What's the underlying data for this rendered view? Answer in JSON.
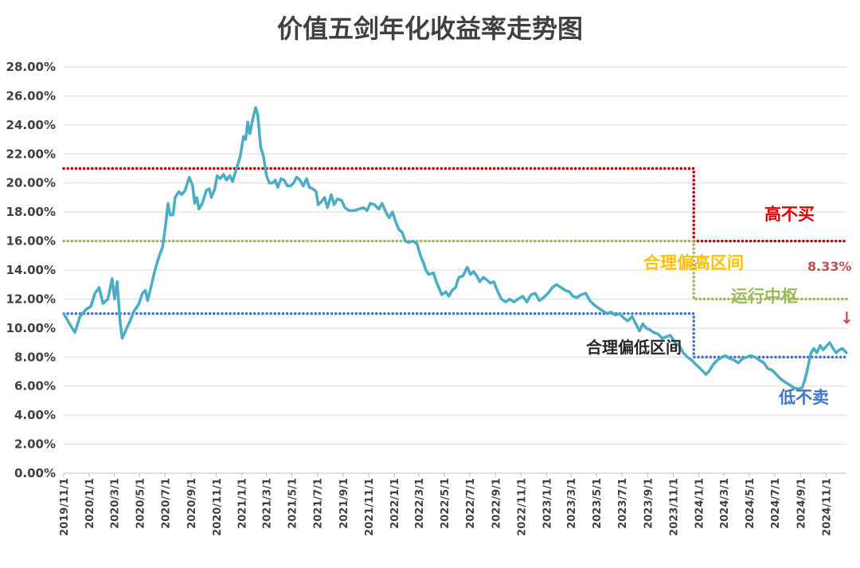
{
  "chart_data": {
    "type": "line",
    "title": "价值五剑年化收益率走势图",
    "xlabel": "",
    "ylabel": "",
    "ylim": [
      0,
      28
    ],
    "y_ticks": [
      "0.00%",
      "2.00%",
      "4.00%",
      "6.00%",
      "8.00%",
      "10.00%",
      "12.00%",
      "14.00%",
      "16.00%",
      "18.00%",
      "20.00%",
      "22.00%",
      "24.00%",
      "26.00%",
      "28.00%"
    ],
    "x_ticks": [
      "2019/11/1",
      "2020/1/1",
      "2020/3/1",
      "2020/5/1",
      "2020/7/1",
      "2020/9/1",
      "2020/11/1",
      "2021/1/1",
      "2021/3/1",
      "2021/5/1",
      "2021/7/1",
      "2021/9/1",
      "2021/11/1",
      "2022/1/1",
      "2022/3/1",
      "2022/5/1",
      "2022/7/1",
      "2022/9/1",
      "2022/11/1",
      "2023/1/1",
      "2023/3/1",
      "2023/5/1",
      "2023/7/1",
      "2023/9/1",
      "2023/11/1",
      "2024/1/1",
      "2024/3/1",
      "2024/5/1",
      "2024/7/1",
      "2024/9/1",
      "2024/11/1"
    ],
    "x_range": [
      "2019/11/1",
      "2024/12/20"
    ],
    "grid": true,
    "series": [
      {
        "kind": "annualized-return",
        "color": "#4bacc6",
        "points": [
          [
            "2019/11/1",
            11.0
          ],
          [
            "2019/11/15",
            10.3
          ],
          [
            "2019/11/28",
            9.7
          ],
          [
            "2019/12/10",
            10.8
          ],
          [
            "2019/12/25",
            11.3
          ],
          [
            "2020/1/5",
            11.5
          ],
          [
            "2020/1/15",
            12.4
          ],
          [
            "2020/1/25",
            12.8
          ],
          [
            "2020/2/3",
            11.7
          ],
          [
            "2020/2/15",
            12.0
          ],
          [
            "2020/2/25",
            13.4
          ],
          [
            "2020/3/2",
            12.0
          ],
          [
            "2020/3/8",
            13.2
          ],
          [
            "2020/3/15",
            10.5
          ],
          [
            "2020/3/20",
            9.3
          ],
          [
            "2020/3/28",
            9.8
          ],
          [
            "2020/4/8",
            10.5
          ],
          [
            "2020/4/18",
            11.2
          ],
          [
            "2020/4/28",
            11.6
          ],
          [
            "2020/5/8",
            12.4
          ],
          [
            "2020/5/15",
            12.6
          ],
          [
            "2020/5/20",
            11.9
          ],
          [
            "2020/5/28",
            12.8
          ],
          [
            "2020/6/5",
            13.8
          ],
          [
            "2020/6/15",
            14.8
          ],
          [
            "2020/6/25",
            15.6
          ],
          [
            "2020/7/1",
            16.8
          ],
          [
            "2020/7/8",
            18.6
          ],
          [
            "2020/7/13",
            17.8
          ],
          [
            "2020/7/20",
            17.8
          ],
          [
            "2020/7/25",
            19.0
          ],
          [
            "2020/8/3",
            19.4
          ],
          [
            "2020/8/10",
            19.2
          ],
          [
            "2020/8/18",
            19.5
          ],
          [
            "2020/8/28",
            20.4
          ],
          [
            "2020/9/5",
            19.8
          ],
          [
            "2020/9/10",
            18.6
          ],
          [
            "2020/9/15",
            19.0
          ],
          [
            "2020/9/20",
            18.2
          ],
          [
            "2020/9/28",
            18.6
          ],
          [
            "2020/10/8",
            19.5
          ],
          [
            "2020/10/15",
            19.6
          ],
          [
            "2020/10/20",
            19.0
          ],
          [
            "2020/10/28",
            19.6
          ],
          [
            "2020/11/3",
            20.5
          ],
          [
            "2020/11/10",
            20.3
          ],
          [
            "2020/11/18",
            20.6
          ],
          [
            "2020/11/25",
            20.2
          ],
          [
            "2020/12/3",
            20.5
          ],
          [
            "2020/12/10",
            20.1
          ],
          [
            "2020/12/18",
            20.9
          ],
          [
            "2020/12/28",
            21.8
          ],
          [
            "2021/1/5",
            23.2
          ],
          [
            "2021/1/10",
            23.0
          ],
          [
            "2021/1/15",
            24.2
          ],
          [
            "2021/1/20",
            23.4
          ],
          [
            "2021/1/28",
            24.5
          ],
          [
            "2021/2/3",
            25.2
          ],
          [
            "2021/2/8",
            24.7
          ],
          [
            "2021/2/15",
            22.5
          ],
          [
            "2021/2/22",
            21.8
          ],
          [
            "2021/3/1",
            20.5
          ],
          [
            "2021/3/8",
            20.0
          ],
          [
            "2021/3/15",
            20.0
          ],
          [
            "2021/3/22",
            20.2
          ],
          [
            "2021/3/28",
            19.7
          ],
          [
            "2021/4/5",
            20.3
          ],
          [
            "2021/4/12",
            20.2
          ],
          [
            "2021/4/20",
            19.8
          ],
          [
            "2021/4/28",
            19.8
          ],
          [
            "2021/5/5",
            20.0
          ],
          [
            "2021/5/12",
            20.4
          ],
          [
            "2021/5/20",
            20.2
          ],
          [
            "2021/5/28",
            19.8
          ],
          [
            "2021/6/5",
            20.3
          ],
          [
            "2021/6/12",
            19.7
          ],
          [
            "2021/6/20",
            19.6
          ],
          [
            "2021/6/28",
            19.4
          ],
          [
            "2021/7/3",
            18.5
          ],
          [
            "2021/7/10",
            18.7
          ],
          [
            "2021/7/18",
            19.0
          ],
          [
            "2021/7/25",
            18.3
          ],
          [
            "2021/8/3",
            19.2
          ],
          [
            "2021/8/10",
            18.5
          ],
          [
            "2021/8/18",
            18.9
          ],
          [
            "2021/8/28",
            18.8
          ],
          [
            "2021/9/5",
            18.3
          ],
          [
            "2021/9/15",
            18.1
          ],
          [
            "2021/9/28",
            18.1
          ],
          [
            "2021/10/8",
            18.2
          ],
          [
            "2021/10/20",
            18.3
          ],
          [
            "2021/10/28",
            18.1
          ],
          [
            "2021/11/5",
            18.6
          ],
          [
            "2021/11/15",
            18.5
          ],
          [
            "2021/11/25",
            18.2
          ],
          [
            "2021/12/3",
            18.6
          ],
          [
            "2021/12/12",
            18.0
          ],
          [
            "2021/12/20",
            17.6
          ],
          [
            "2021/12/28",
            18.0
          ],
          [
            "2022/1/5",
            17.3
          ],
          [
            "2022/1/12",
            16.8
          ],
          [
            "2022/1/20",
            16.6
          ],
          [
            "2022/1/28",
            16.0
          ],
          [
            "2022/2/5",
            15.9
          ],
          [
            "2022/2/15",
            16.0
          ],
          [
            "2022/2/25",
            15.8
          ],
          [
            "2022/3/5",
            15.0
          ],
          [
            "2022/3/12",
            14.5
          ],
          [
            "2022/3/18",
            14.0
          ],
          [
            "2022/3/25",
            13.7
          ],
          [
            "2022/4/5",
            13.8
          ],
          [
            "2022/4/12",
            13.2
          ],
          [
            "2022/4/18",
            12.8
          ],
          [
            "2022/4/25",
            12.3
          ],
          [
            "2022/5/5",
            12.5
          ],
          [
            "2022/5/12",
            12.2
          ],
          [
            "2022/5/20",
            12.6
          ],
          [
            "2022/5/28",
            12.8
          ],
          [
            "2022/6/5",
            13.5
          ],
          [
            "2022/6/15",
            13.6
          ],
          [
            "2022/6/25",
            14.2
          ],
          [
            "2022/7/3",
            13.7
          ],
          [
            "2022/7/10",
            13.9
          ],
          [
            "2022/7/18",
            13.6
          ],
          [
            "2022/7/25",
            13.2
          ],
          [
            "2022/8/3",
            13.5
          ],
          [
            "2022/8/12",
            13.3
          ],
          [
            "2022/8/20",
            13.1
          ],
          [
            "2022/8/28",
            13.2
          ],
          [
            "2022/9/5",
            12.6
          ],
          [
            "2022/9/15",
            12.0
          ],
          [
            "2022/9/25",
            11.8
          ],
          [
            "2022/10/5",
            12.0
          ],
          [
            "2022/10/15",
            11.8
          ],
          [
            "2022/10/25",
            12.0
          ],
          [
            "2022/11/5",
            12.2
          ],
          [
            "2022/11/15",
            11.8
          ],
          [
            "2022/11/25",
            12.3
          ],
          [
            "2022/12/5",
            12.4
          ],
          [
            "2022/12/15",
            11.9
          ],
          [
            "2022/12/25",
            12.1
          ],
          [
            "2023/1/5",
            12.4
          ],
          [
            "2023/1/15",
            12.8
          ],
          [
            "2023/1/25",
            13.0
          ],
          [
            "2023/2/5",
            12.8
          ],
          [
            "2023/2/15",
            12.6
          ],
          [
            "2023/2/25",
            12.5
          ],
          [
            "2023/3/5",
            12.2
          ],
          [
            "2023/3/15",
            12.1
          ],
          [
            "2023/3/25",
            12.3
          ],
          [
            "2023/4/5",
            12.4
          ],
          [
            "2023/4/15",
            11.9
          ],
          [
            "2023/4/25",
            11.6
          ],
          [
            "2023/5/5",
            11.4
          ],
          [
            "2023/5/15",
            11.2
          ],
          [
            "2023/5/25",
            11.0
          ],
          [
            "2023/6/5",
            11.1
          ],
          [
            "2023/6/15",
            10.9
          ],
          [
            "2023/6/25",
            11.0
          ],
          [
            "2023/7/5",
            10.7
          ],
          [
            "2023/7/15",
            10.5
          ],
          [
            "2023/7/25",
            10.8
          ],
          [
            "2023/8/5",
            10.2
          ],
          [
            "2023/8/12",
            9.8
          ],
          [
            "2023/8/20",
            10.3
          ],
          [
            "2023/8/28",
            10.0
          ],
          [
            "2023/9/5",
            9.9
          ],
          [
            "2023/9/15",
            9.7
          ],
          [
            "2023/9/25",
            9.6
          ],
          [
            "2023/10/5",
            9.3
          ],
          [
            "2023/10/15",
            9.4
          ],
          [
            "2023/10/25",
            9.5
          ],
          [
            "2023/11/5",
            9.0
          ],
          [
            "2023/11/15",
            8.8
          ],
          [
            "2023/11/25",
            8.3
          ],
          [
            "2023/12/5",
            8.0
          ],
          [
            "2023/12/15",
            7.8
          ],
          [
            "2023/12/25",
            7.5
          ],
          [
            "2024/1/5",
            7.2
          ],
          [
            "2024/1/12",
            7.0
          ],
          [
            "2024/1/18",
            6.8
          ],
          [
            "2024/1/25",
            7.0
          ],
          [
            "2024/2/5",
            7.5
          ],
          [
            "2024/2/15",
            7.8
          ],
          [
            "2024/2/25",
            8.0
          ],
          [
            "2024/3/5",
            8.1
          ],
          [
            "2024/3/15",
            7.9
          ],
          [
            "2024/3/25",
            7.8
          ],
          [
            "2024/4/5",
            7.6
          ],
          [
            "2024/4/15",
            7.9
          ],
          [
            "2024/4/25",
            8.0
          ],
          [
            "2024/5/5",
            8.1
          ],
          [
            "2024/5/15",
            8.0
          ],
          [
            "2024/5/25",
            7.8
          ],
          [
            "2024/6/5",
            7.6
          ],
          [
            "2024/6/15",
            7.2
          ],
          [
            "2024/6/25",
            7.1
          ],
          [
            "2024/7/5",
            6.8
          ],
          [
            "2024/7/15",
            6.5
          ],
          [
            "2024/7/25",
            6.3
          ],
          [
            "2024/8/5",
            6.1
          ],
          [
            "2024/8/15",
            5.9
          ],
          [
            "2024/8/25",
            5.8
          ],
          [
            "2024/9/5",
            5.9
          ],
          [
            "2024/9/12",
            6.5
          ],
          [
            "2024/9/20",
            7.5
          ],
          [
            "2024/9/26",
            8.3
          ],
          [
            "2024/10/3",
            8.6
          ],
          [
            "2024/10/10",
            8.3
          ],
          [
            "2024/10/18",
            8.8
          ],
          [
            "2024/10/25",
            8.5
          ],
          [
            "2024/11/3",
            8.8
          ],
          [
            "2024/11/10",
            9.0
          ],
          [
            "2024/11/18",
            8.6
          ],
          [
            "2024/11/25",
            8.3
          ],
          [
            "2024/12/3",
            8.5
          ],
          [
            "2024/12/10",
            8.6
          ],
          [
            "2024/12/20",
            8.3
          ]
        ]
      }
    ],
    "bands": [
      {
        "kind": "upper",
        "color": "#c00000",
        "segments": [
          [
            "2019/11/1",
            "2023/12/20",
            21.0
          ],
          [
            "2023/12/20",
            "2024/12/20",
            16.0
          ]
        ]
      },
      {
        "kind": "middle",
        "color": "#9bbb59",
        "segments": [
          [
            "2019/11/1",
            "2023/12/20",
            16.0
          ],
          [
            "2023/12/20",
            "2024/12/20",
            12.0
          ]
        ]
      },
      {
        "kind": "lower",
        "color": "#4472c4",
        "segments": [
          [
            "2019/11/1",
            "2023/12/20",
            11.0
          ],
          [
            "2023/12/20",
            "2024/12/20",
            8.0
          ]
        ]
      }
    ],
    "annotations": {
      "high_no_buy": {
        "text": "高不买",
        "color": "#e00000"
      },
      "upper_zone": {
        "text": "合理偏高区间",
        "color": "#ffc000"
      },
      "current_value": {
        "text": "8.33%",
        "color": "#c0504d"
      },
      "middle_axis": {
        "text": "运行中枢",
        "color": "#9bbb59"
      },
      "arrow": {
        "text": "↓",
        "color": "#c0504d"
      },
      "lower_zone": {
        "text": "合理偏低区间",
        "color": "#262626"
      },
      "low_no_sell": {
        "text": "低不卖",
        "color": "#4472c4"
      }
    }
  }
}
